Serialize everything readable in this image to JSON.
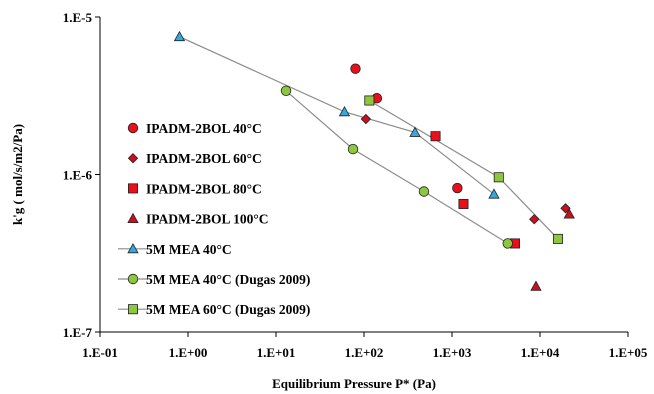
{
  "chart_data": {
    "type": "scatter",
    "title": "",
    "xlabel": "Equilibrium Pressure P* (Pa)",
    "ylabel": "k'g ( mol/s/m2/Pa)",
    "xscale": "log",
    "yscale": "log",
    "xlim": [
      0.1,
      100000
    ],
    "ylim": [
      1e-07,
      1e-05
    ],
    "x_ticks": [
      "1.E-01",
      "1.E+00",
      "1.E+01",
      "1.E+02",
      "1.E+03",
      "1.E+04",
      "1.E+05"
    ],
    "y_ticks": [
      "1.E-7",
      "1.E-6",
      "1.E-5"
    ],
    "grid": false,
    "legend_position": "left",
    "series": [
      {
        "name": "IPADM-2BOL 40°C",
        "marker": "circle",
        "color": "#e8101a",
        "line": false,
        "points": [
          [
            80,
            4.7e-06
          ],
          [
            140,
            3.05e-06
          ],
          [
            1150,
            8.2e-07
          ]
        ]
      },
      {
        "name": "IPADM-2BOL 60°C",
        "marker": "diamond",
        "color": "#cc0f1e",
        "line": false,
        "points": [
          [
            105,
            2.25e-06
          ],
          [
            640,
            1.75e-06
          ],
          [
            8600,
            5.2e-07
          ],
          [
            19500,
            6.1e-07
          ]
        ]
      },
      {
        "name": "IPADM-2BOL 80°C",
        "marker": "square",
        "color": "#e8101a",
        "line": false,
        "points": [
          [
            650,
            1.75e-06
          ],
          [
            1350,
            6.5e-07
          ],
          [
            5200,
            3.65e-07
          ]
        ]
      },
      {
        "name": "IPADM-2BOL 100°C",
        "marker": "triangle",
        "color": "#cc0f1e",
        "line": false,
        "points": [
          [
            9000,
            1.95e-07
          ],
          [
            21500,
            5.6e-07
          ]
        ]
      },
      {
        "name": "5M MEA 40°C",
        "marker": "triangle",
        "color": "#33a8dc",
        "line": true,
        "points": [
          [
            0.8,
            7.5e-06
          ],
          [
            60,
            2.5e-06
          ],
          [
            380,
            1.85e-06
          ],
          [
            3000,
            7.5e-07
          ]
        ]
      },
      {
        "name": "5M MEA 40°C (Dugas 2009)",
        "marker": "circle",
        "color": "#8dc63f",
        "line": true,
        "points": [
          [
            13,
            3.4e-06
          ],
          [
            75,
            1.45e-06
          ],
          [
            480,
            7.8e-07
          ],
          [
            4300,
            3.65e-07
          ]
        ]
      },
      {
        "name": "5M MEA 60°C (Dugas 2009)",
        "marker": "square",
        "color": "#8dc63f",
        "line": true,
        "points": [
          [
            115,
            2.95e-06
          ],
          [
            3400,
            9.6e-07
          ],
          [
            16000,
            3.9e-07
          ]
        ]
      }
    ]
  }
}
